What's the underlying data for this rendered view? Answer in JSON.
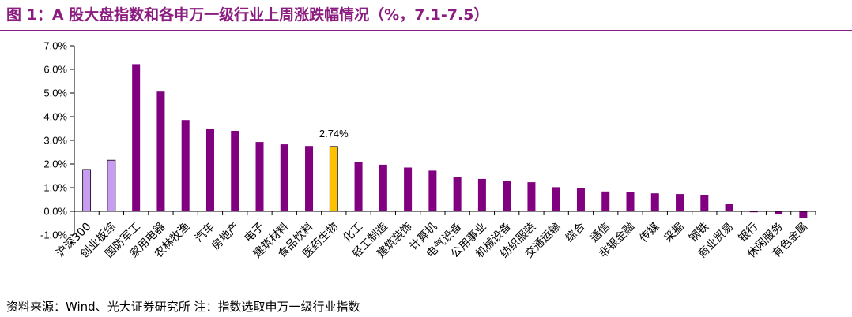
{
  "title": "图 1：A 股大盘指数和各申万一级行业上周涨跌幅情况（%，7.1-7.5）",
  "source": "资料来源：Wind、光大证券研究所  注：指数选取申万一级行业指数",
  "colors": {
    "accent": "#8a1d7f",
    "index_bar": "#c89cf0",
    "industry_bar": "#800080",
    "highlight_bar": "#ffc000"
  },
  "chart_data": {
    "type": "bar",
    "categories": [
      "沪深300",
      "创业板综",
      "国防军工",
      "家用电器",
      "农林牧渔",
      "汽车",
      "房地产",
      "电子",
      "建筑材料",
      "食品饮料",
      "医药生物",
      "化工",
      "轻工制造",
      "建筑装饰",
      "计算机",
      "电气设备",
      "公用事业",
      "机械设备",
      "纺织服装",
      "交通运输",
      "综合",
      "通信",
      "非银金融",
      "传媒",
      "采掘",
      "钢铁",
      "商业贸易",
      "银行",
      "休闲服务",
      "有色金属"
    ],
    "values": [
      1.77,
      2.16,
      6.22,
      5.06,
      3.86,
      3.47,
      3.4,
      2.93,
      2.83,
      2.76,
      2.74,
      2.07,
      1.97,
      1.85,
      1.72,
      1.44,
      1.37,
      1.27,
      1.23,
      1.02,
      0.97,
      0.84,
      0.8,
      0.76,
      0.73,
      0.7,
      0.3,
      -0.04,
      -0.1,
      -0.28
    ],
    "bar_styles": [
      "index",
      "index",
      "industry",
      "industry",
      "industry",
      "industry",
      "industry",
      "industry",
      "industry",
      "industry",
      "highlight",
      "industry",
      "industry",
      "industry",
      "industry",
      "industry",
      "industry",
      "industry",
      "industry",
      "industry",
      "industry",
      "industry",
      "industry",
      "industry",
      "industry",
      "industry",
      "industry",
      "industry",
      "industry",
      "industry"
    ],
    "yticks": [
      "7.0%",
      "6.0%",
      "5.0%",
      "4.0%",
      "3.0%",
      "2.0%",
      "1.0%",
      "0.0%",
      "-1.0%"
    ],
    "ylim": [
      -1,
      7
    ],
    "annotation": {
      "category": "医药生物",
      "text": "2.74%"
    },
    "grid": false,
    "legend": "none"
  }
}
